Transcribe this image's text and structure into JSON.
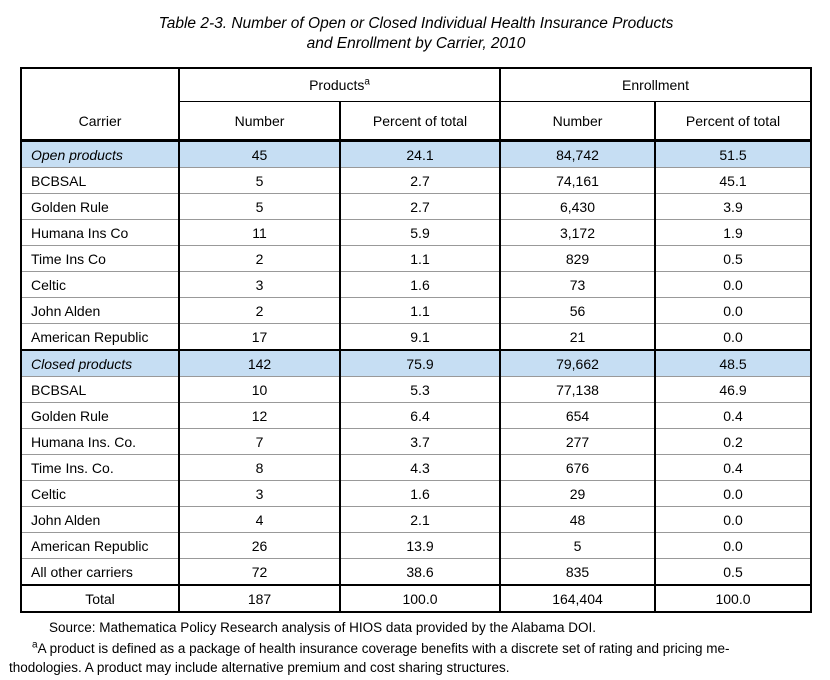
{
  "title": {
    "line1": "Table 2-3. Number of Open or Closed Individual Health Insurance Products",
    "line2": "and Enrollment by Carrier, 2010"
  },
  "table": {
    "header": {
      "carrier": "Carrier",
      "products_label": "Products",
      "products_superscript": "a",
      "enrollment_label": "Enrollment",
      "number": "Number",
      "percent": "Percent of total"
    },
    "rows": [
      {
        "type": "section",
        "carrier": "Open products",
        "cells": [
          "45",
          "24.1",
          "84,742",
          "51.5"
        ]
      },
      {
        "type": "data",
        "carrier": "BCBSAL",
        "cells": [
          "5",
          "2.7",
          "74,161",
          "45.1"
        ]
      },
      {
        "type": "data",
        "carrier": "Golden Rule",
        "cells": [
          "5",
          "2.7",
          "6,430",
          "3.9"
        ]
      },
      {
        "type": "data",
        "carrier": "Humana Ins Co",
        "cells": [
          "11",
          "5.9",
          "3,172",
          "1.9"
        ]
      },
      {
        "type": "data",
        "carrier": "Time Ins Co",
        "cells": [
          "2",
          "1.1",
          "829",
          "0.5"
        ]
      },
      {
        "type": "data",
        "carrier": "Celtic",
        "cells": [
          "3",
          "1.6",
          "73",
          "0.0"
        ]
      },
      {
        "type": "data",
        "carrier": "John Alden",
        "cells": [
          "2",
          "1.1",
          "56",
          "0.0"
        ]
      },
      {
        "type": "data",
        "carrier": "American Republic",
        "cells": [
          "17",
          "9.1",
          "21",
          "0.0"
        ]
      },
      {
        "type": "section",
        "carrier": "Closed products",
        "cells": [
          "142",
          "75.9",
          "79,662",
          "48.5"
        ]
      },
      {
        "type": "data",
        "carrier": "BCBSAL",
        "cells": [
          "10",
          "5.3",
          "77,138",
          "46.9"
        ]
      },
      {
        "type": "data",
        "carrier": "Golden Rule",
        "cells": [
          "12",
          "6.4",
          "654",
          "0.4"
        ]
      },
      {
        "type": "data",
        "carrier": "Humana Ins. Co.",
        "cells": [
          "7",
          "3.7",
          "277",
          "0.2"
        ]
      },
      {
        "type": "data",
        "carrier": "Time Ins. Co.",
        "cells": [
          "8",
          "4.3",
          "676",
          "0.4"
        ]
      },
      {
        "type": "data",
        "carrier": "Celtic",
        "cells": [
          "3",
          "1.6",
          "29",
          "0.0"
        ]
      },
      {
        "type": "data",
        "carrier": "John Alden",
        "cells": [
          "4",
          "2.1",
          "48",
          "0.0"
        ]
      },
      {
        "type": "data",
        "carrier": "American Republic",
        "cells": [
          "26",
          "13.9",
          "5",
          "0.0"
        ]
      },
      {
        "type": "data",
        "carrier": "All other carriers",
        "cells": [
          "72",
          "38.6",
          "835",
          "0.5"
        ]
      },
      {
        "type": "total",
        "carrier": "Total",
        "cells": [
          "187",
          "100.0",
          "164,404",
          "100.0"
        ]
      }
    ]
  },
  "notes": {
    "source": "Source: Mathematica Policy Research analysis of HIOS data provided by the Alabama DOI.",
    "footnote_superscript": "a",
    "footnote_line1": "A product is defined as a package of health insurance coverage benefits with a discrete set of rating and pricing me-",
    "footnote_line2": "thodologies. A product may include alternative premium and cost sharing structures."
  },
  "colors": {
    "section_row_bg": "#C6DEF3",
    "border_black": "#000000",
    "row_separator": "#999999"
  }
}
